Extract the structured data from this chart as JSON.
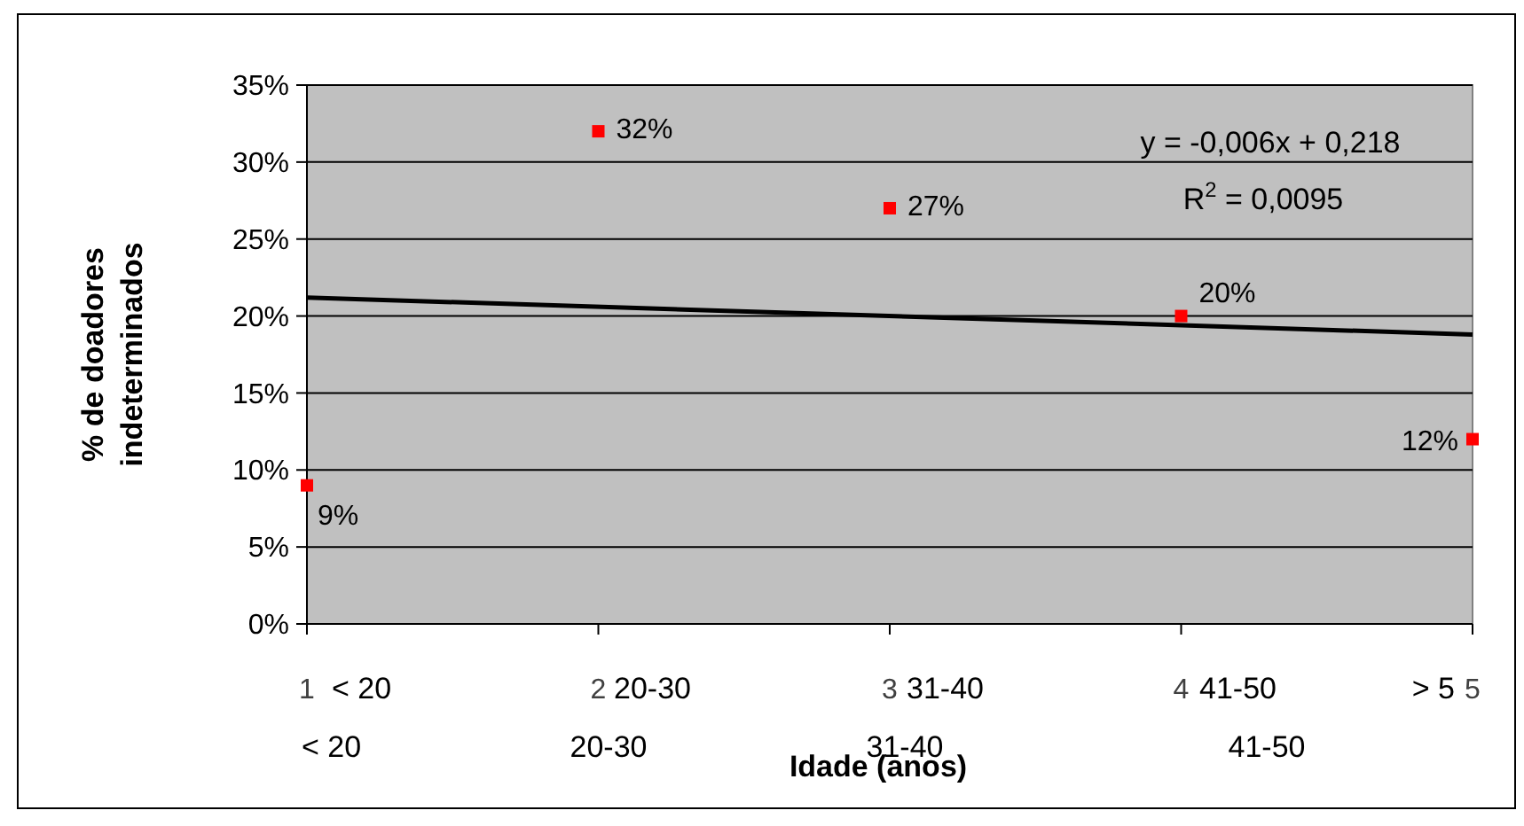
{
  "chart_data": {
    "type": "scatter",
    "xlabel": "Idade (anos)",
    "ylabel": "% de doadores\nindeterminados",
    "xlim": [
      1,
      5
    ],
    "xticks": [
      1,
      2,
      3,
      4,
      5
    ],
    "ylim": [
      0,
      35
    ],
    "yticks": [
      {
        "value": 0,
        "label": "0%"
      },
      {
        "value": 5,
        "label": "5%"
      },
      {
        "value": 10,
        "label": "10%"
      },
      {
        "value": 15,
        "label": "15%"
      },
      {
        "value": 20,
        "label": "20%"
      },
      {
        "value": 25,
        "label": "25%"
      },
      {
        "value": 30,
        "label": "30%"
      },
      {
        "value": 35,
        "label": "35%"
      }
    ],
    "grid": "y",
    "series": [
      {
        "type": "scatter",
        "marker": "square",
        "color": "#ff0000",
        "x": [
          1,
          2,
          3,
          4,
          5
        ],
        "values": [
          9,
          32,
          27,
          20,
          12
        ],
        "value_labels": [
          "9%",
          "32%",
          "27%",
          "20%",
          "12%"
        ]
      },
      {
        "type": "line",
        "color": "#000000",
        "x": [
          1,
          5
        ],
        "values": [
          21.2,
          18.8
        ]
      }
    ],
    "annotations": [
      "y = -0,006x + 0,218",
      "R$^{2}$ = 0,0095",
      "< 20",
      "20-30",
      "31-40",
      "41-50",
      "> 5",
      "< 20",
      "20-30",
      "31-40",
      "41-50"
    ]
  }
}
